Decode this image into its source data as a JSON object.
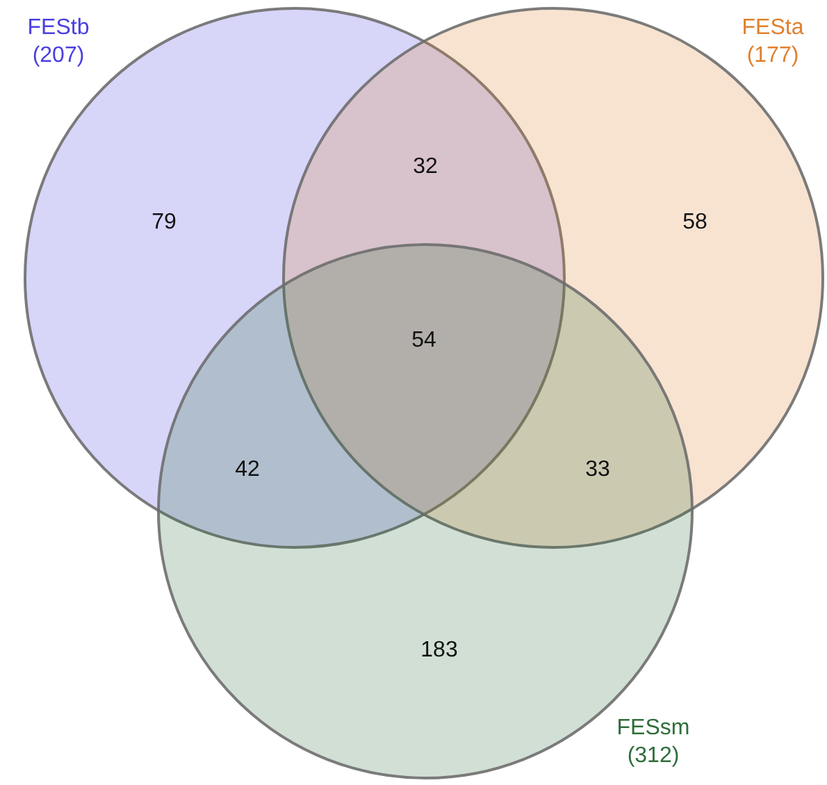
{
  "chart_data": {
    "type": "other",
    "categories": [
      "FEStb",
      "FESta",
      "FESsm"
    ],
    "values": [
      207,
      177,
      312
    ],
    "value_labels": [
      "(207)",
      "(177)",
      "(312)"
    ],
    "colors": [
      "#4a3fe0",
      "#e0812f",
      "#2e6e3a"
    ],
    "annotations": [
      "79",
      "32",
      "58",
      "42",
      "54",
      "33",
      "183"
    ]
  }
}
